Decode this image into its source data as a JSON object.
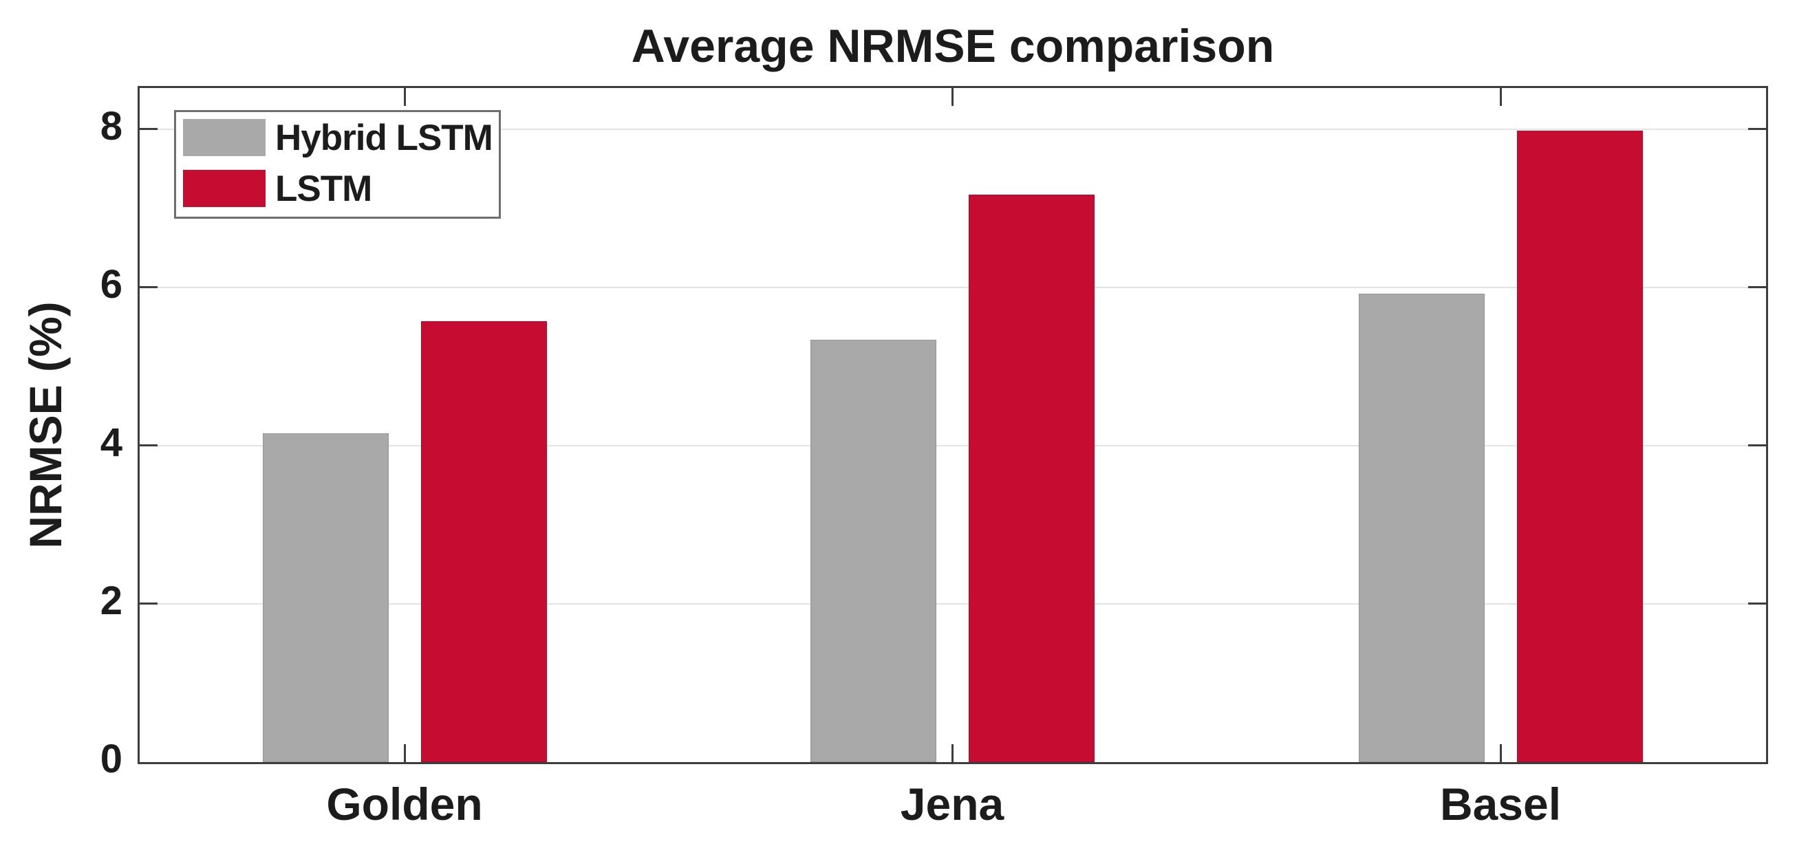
{
  "chart_data": {
    "type": "bar",
    "title": "Average NRMSE comparison",
    "xlabel": "",
    "ylabel": "NRMSE (%)",
    "categories": [
      "Golden",
      "Jena",
      "Basel"
    ],
    "series": [
      {
        "name": "Hybrid LSTM",
        "color": "#a9a9a9",
        "values": [
          4.16,
          5.34,
          5.92
        ]
      },
      {
        "name": "LSTM",
        "color": "#c60c30",
        "values": [
          5.57,
          7.17,
          7.98
        ]
      }
    ],
    "ylim": [
      0,
      8.52
    ],
    "yticks": [
      0,
      2,
      4,
      6,
      8
    ],
    "grid": true,
    "grid_color": "#e3e3e3",
    "axis_color": "#3d3d3d",
    "legend_position": "top-left"
  }
}
